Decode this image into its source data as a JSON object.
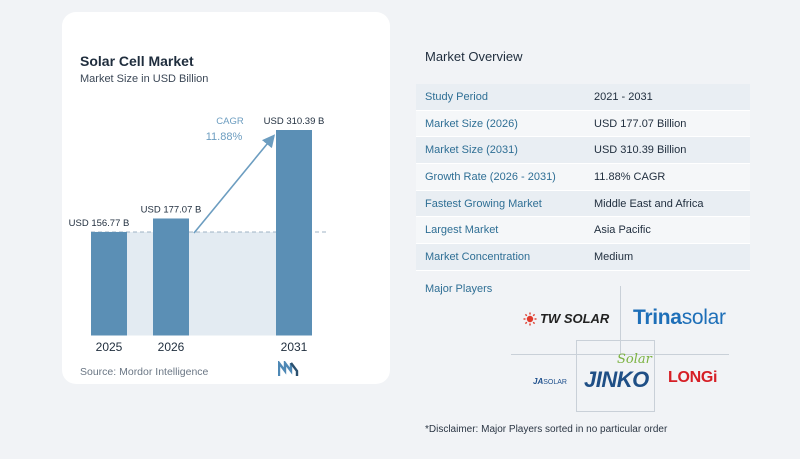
{
  "chart": {
    "title": "Solar Cell Market",
    "subtitle": "Market Size in USD Billion",
    "source": "Source: Mordor Intelligence"
  },
  "chart_data": {
    "type": "bar",
    "title": "Solar Cell Market",
    "subtitle": "Market Size in USD Billion",
    "categories": [
      "2025",
      "2026",
      "2031"
    ],
    "values": [
      156.77,
      177.07,
      310.39
    ],
    "data_labels": [
      "USD 156.77 B",
      "USD 177.07 B",
      "USD 310.39 B"
    ],
    "annotation": {
      "label": "CAGR",
      "value": "11.88%"
    },
    "ylim": [
      0,
      320
    ],
    "colors": {
      "bar": "#5b8fb5",
      "bar_light": "#b9d0e4",
      "band": "#e3ebf2",
      "arrow": "#6c9dc0"
    }
  },
  "overview": {
    "title": "Market Overview",
    "rows": [
      {
        "key": "Study Period",
        "value": "2021 - 2031"
      },
      {
        "key": "Market Size (2026)",
        "value": "USD 177.07 Billion"
      },
      {
        "key": "Market Size (2031)",
        "value": "USD 310.39 Billion"
      },
      {
        "key": "Growth Rate (2026 - 2031)",
        "value": "11.88% CAGR"
      },
      {
        "key": "Fastest Growing Market",
        "value": "Middle East and Africa"
      },
      {
        "key": "Largest Market",
        "value": "Asia Pacific"
      },
      {
        "key": "Market Concentration",
        "value": "Medium"
      }
    ]
  },
  "players": {
    "title": "Major Players",
    "tw_solar": "TW SOLAR",
    "trina_a": "Trina",
    "trina_b": "solar",
    "ja_solar_a": "JA",
    "ja_solar_b": "SOLAR",
    "jinko_script": "Solar",
    "jinko": "JINKO",
    "longi": "LONGi"
  },
  "disclaimer": "*Disclaimer: Major Players sorted in no particular order",
  "theme": {
    "accent": "#2f6f95",
    "tw_red": "#e0392b",
    "trina_blue": "#1e6fb8",
    "jinko_green": "#7cb342",
    "longi_red": "#d61f26"
  }
}
